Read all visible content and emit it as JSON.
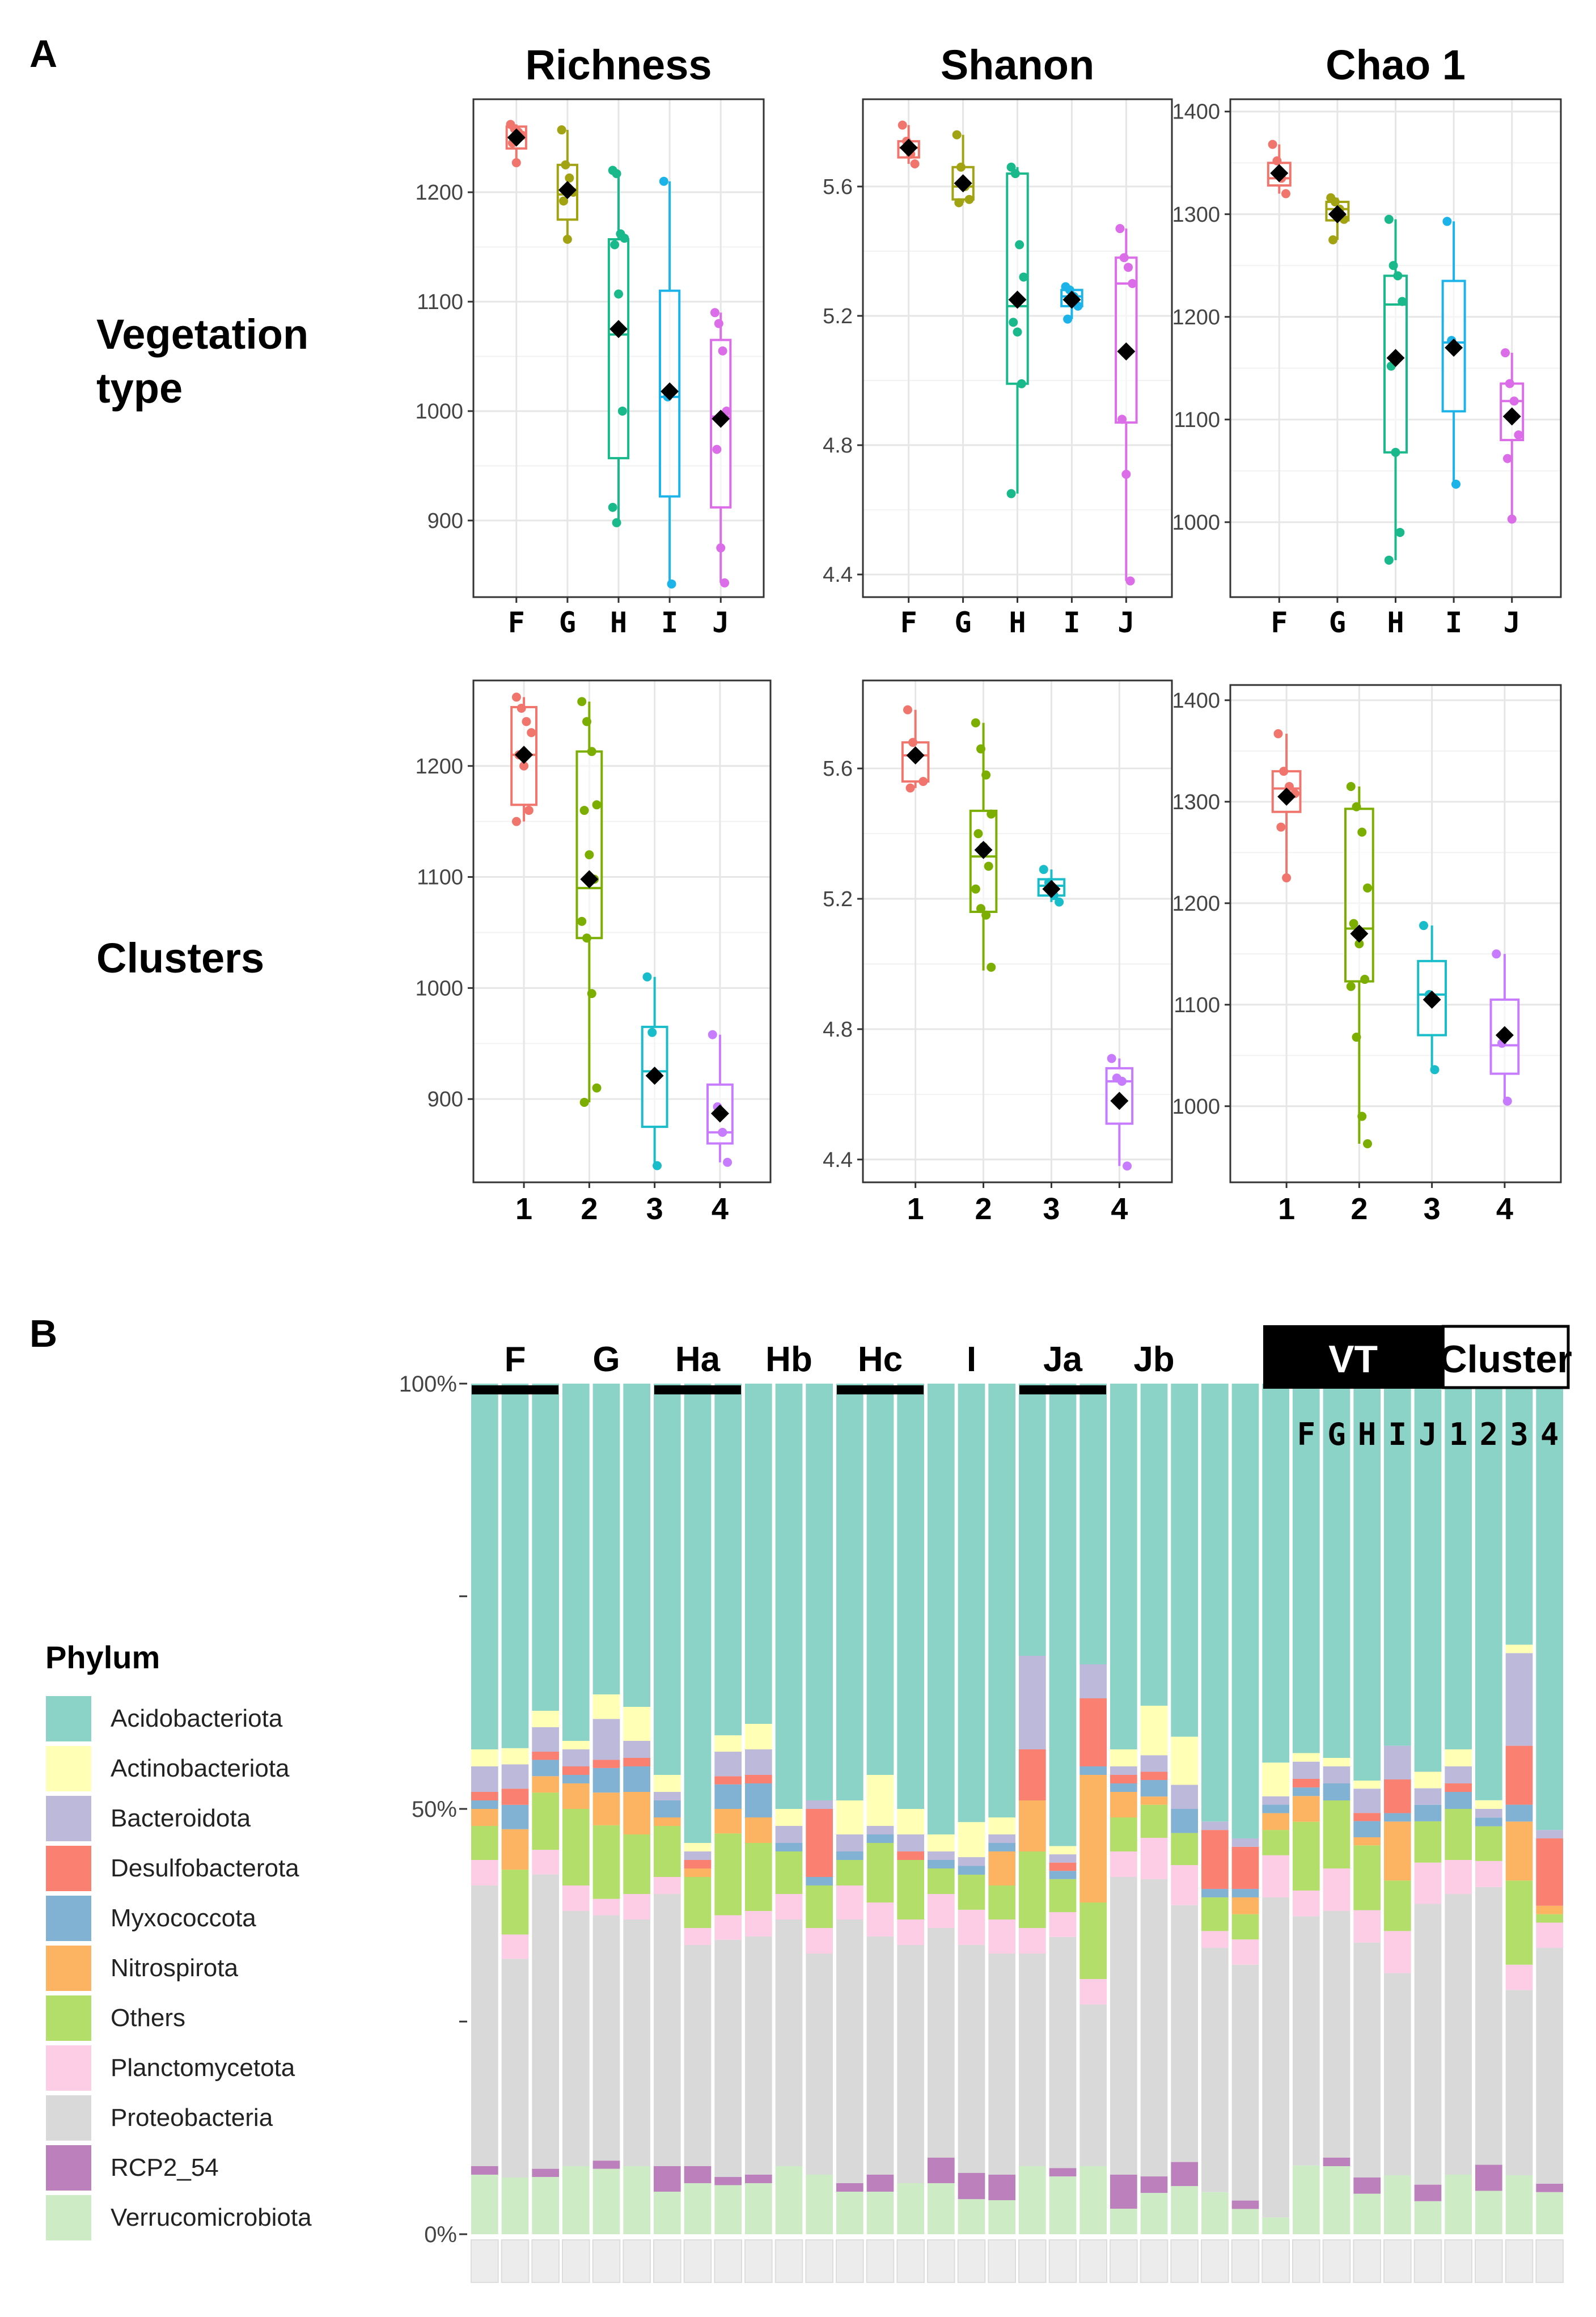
{
  "panel_labels": {
    "a": "A",
    "b": "B"
  },
  "row_labels": {
    "vegetation": [
      "Vegetation",
      "type"
    ],
    "clusters": "Clusters"
  },
  "colors": {
    "F": "#F0766D",
    "G": "#A2A312",
    "H": "#19B98B",
    "I": "#1CB3E8",
    "J": "#DB6DE8",
    "c1": "#F0766D",
    "c2": "#7CAE00",
    "c3": "#19BCC9",
    "c4": "#C77CFF"
  },
  "chart_data": [
    {
      "id": "richness_vt",
      "type": "boxplot",
      "title": "Richness",
      "categories": [
        "F",
        "G",
        "H",
        "I",
        "J"
      ],
      "ylim": [
        830,
        1285
      ],
      "yticks": [
        900,
        1000,
        1100,
        1200
      ],
      "series": [
        {
          "name": "F",
          "min": 1227,
          "q1": 1240,
          "median": 1250,
          "q3": 1260,
          "max": 1262,
          "mean": 1250,
          "points": [
            1262,
            1258,
            1255,
            1252,
            1245,
            1227
          ]
        },
        {
          "name": "G",
          "min": 1157,
          "q1": 1175,
          "median": 1198,
          "q3": 1225,
          "max": 1257,
          "mean": 1202,
          "points": [
            1257,
            1225,
            1213,
            1200,
            1192,
            1157
          ]
        },
        {
          "name": "H",
          "min": 898,
          "q1": 957,
          "median": 1070,
          "q3": 1157,
          "max": 1220,
          "mean": 1075,
          "points": [
            1220,
            1217,
            1162,
            1158,
            1152,
            1107,
            1000,
            912,
            898
          ]
        },
        {
          "name": "I",
          "min": 842,
          "q1": 922,
          "median": 1013,
          "q3": 1110,
          "max": 1210,
          "mean": 1018,
          "points": [
            1210,
            1013,
            842
          ]
        },
        {
          "name": "J",
          "min": 843,
          "q1": 912,
          "median": 995,
          "q3": 1065,
          "max": 1090,
          "mean": 993,
          "points": [
            1090,
            1080,
            1055,
            1000,
            965,
            875,
            843
          ]
        }
      ]
    },
    {
      "id": "shannon_vt",
      "type": "boxplot",
      "title": "Shanon",
      "categories": [
        "F",
        "G",
        "H",
        "I",
        "J"
      ],
      "ylim": [
        4.33,
        5.87
      ],
      "yticks": [
        4.4,
        4.8,
        5.2,
        5.6
      ],
      "series": [
        {
          "name": "F",
          "min": 5.67,
          "q1": 5.69,
          "median": 5.72,
          "q3": 5.74,
          "max": 5.79,
          "mean": 5.72,
          "points": [
            5.79,
            5.74,
            5.7,
            5.67
          ]
        },
        {
          "name": "G",
          "min": 5.55,
          "q1": 5.56,
          "median": 5.6,
          "q3": 5.66,
          "max": 5.76,
          "mean": 5.61,
          "points": [
            5.76,
            5.66,
            5.6,
            5.56,
            5.55
          ]
        },
        {
          "name": "H",
          "min": 4.65,
          "q1": 4.99,
          "median": 5.23,
          "q3": 5.64,
          "max": 5.66,
          "mean": 5.25,
          "points": [
            5.66,
            5.64,
            5.42,
            5.32,
            5.18,
            5.15,
            4.99,
            4.65
          ]
        },
        {
          "name": "I",
          "min": 5.19,
          "q1": 5.23,
          "median": 5.26,
          "q3": 5.28,
          "max": 5.29,
          "mean": 5.25,
          "points": [
            5.29,
            5.28,
            5.26,
            5.23,
            5.19
          ]
        },
        {
          "name": "J",
          "min": 4.38,
          "q1": 4.87,
          "median": 5.3,
          "q3": 5.38,
          "max": 5.47,
          "mean": 5.09,
          "points": [
            5.47,
            5.38,
            5.35,
            5.3,
            4.88,
            4.71,
            4.38
          ]
        }
      ]
    },
    {
      "id": "chao1_vt",
      "type": "boxplot",
      "title": "Chao 1",
      "categories": [
        "F",
        "G",
        "H",
        "I",
        "J"
      ],
      "ylim": [
        927,
        1412
      ],
      "yticks": [
        1000,
        1100,
        1200,
        1300,
        1400
      ],
      "series": [
        {
          "name": "F",
          "min": 1320,
          "q1": 1328,
          "median": 1335,
          "q3": 1350,
          "max": 1368,
          "mean": 1340,
          "points": [
            1368,
            1352,
            1335,
            1320
          ]
        },
        {
          "name": "G",
          "min": 1275,
          "q1": 1294,
          "median": 1305,
          "q3": 1312,
          "max": 1316,
          "mean": 1300,
          "points": [
            1316,
            1312,
            1305,
            1295,
            1275
          ]
        },
        {
          "name": "H",
          "min": 963,
          "q1": 1068,
          "median": 1212,
          "q3": 1240,
          "max": 1295,
          "mean": 1160,
          "points": [
            1295,
            1250,
            1240,
            1215,
            1152,
            1068,
            990,
            963
          ]
        },
        {
          "name": "I",
          "min": 1037,
          "q1": 1108,
          "median": 1175,
          "q3": 1235,
          "max": 1293,
          "mean": 1170,
          "points": [
            1293,
            1177,
            1037
          ]
        },
        {
          "name": "J",
          "min": 1003,
          "q1": 1080,
          "median": 1118,
          "q3": 1135,
          "max": 1165,
          "mean": 1103,
          "points": [
            1165,
            1135,
            1118,
            1085,
            1062,
            1003
          ]
        }
      ]
    },
    {
      "id": "richness_cl",
      "type": "boxplot",
      "title": "",
      "categories": [
        "1",
        "2",
        "3",
        "4"
      ],
      "ylim": [
        825,
        1277
      ],
      "yticks": [
        900,
        1000,
        1100,
        1200
      ],
      "series": [
        {
          "name": "1",
          "min": 1150,
          "q1": 1165,
          "median": 1210,
          "q3": 1253,
          "max": 1262,
          "mean": 1210,
          "points": [
            1262,
            1252,
            1240,
            1230,
            1210,
            1200,
            1160,
            1150
          ]
        },
        {
          "name": "2",
          "min": 897,
          "q1": 1045,
          "median": 1090,
          "q3": 1213,
          "max": 1258,
          "mean": 1098,
          "points": [
            1258,
            1240,
            1213,
            1165,
            1160,
            1120,
            1098,
            1060,
            1045,
            995,
            910,
            897
          ]
        },
        {
          "name": "3",
          "min": 840,
          "q1": 875,
          "median": 925,
          "q3": 965,
          "max": 1010,
          "mean": 921,
          "points": [
            1010,
            960,
            840
          ]
        },
        {
          "name": "4",
          "min": 843,
          "q1": 860,
          "median": 870,
          "q3": 913,
          "max": 958,
          "mean": 887,
          "points": [
            958,
            893,
            870,
            843
          ]
        }
      ]
    },
    {
      "id": "shannon_cl",
      "type": "boxplot",
      "title": "",
      "categories": [
        "1",
        "2",
        "3",
        "4"
      ],
      "ylim": [
        4.33,
        5.87
      ],
      "yticks": [
        4.4,
        4.8,
        5.2,
        5.6
      ],
      "series": [
        {
          "name": "1",
          "min": 5.54,
          "q1": 5.56,
          "median": 5.64,
          "q3": 5.68,
          "max": 5.78,
          "mean": 5.64,
          "points": [
            5.78,
            5.68,
            5.64,
            5.56,
            5.54
          ]
        },
        {
          "name": "2",
          "min": 4.98,
          "q1": 5.16,
          "median": 5.33,
          "q3": 5.47,
          "max": 5.74,
          "mean": 5.35,
          "points": [
            5.74,
            5.66,
            5.58,
            5.46,
            5.4,
            5.36,
            5.3,
            5.23,
            5.17,
            5.15,
            4.99
          ]
        },
        {
          "name": "3",
          "min": 5.19,
          "q1": 5.21,
          "median": 5.24,
          "q3": 5.26,
          "max": 5.29,
          "mean": 5.23,
          "points": [
            5.29,
            5.25,
            5.21,
            5.19
          ]
        },
        {
          "name": "4",
          "min": 4.38,
          "q1": 4.51,
          "median": 4.64,
          "q3": 4.68,
          "max": 4.71,
          "mean": 4.58,
          "points": [
            4.71,
            4.65,
            4.64,
            4.38
          ]
        }
      ]
    },
    {
      "id": "chao1_cl",
      "type": "boxplot",
      "title": "",
      "categories": [
        "1",
        "2",
        "3",
        "4"
      ],
      "ylim": [
        925,
        1415
      ],
      "yticks": [
        1000,
        1100,
        1200,
        1300,
        1400
      ],
      "series": [
        {
          "name": "1",
          "min": 1225,
          "q1": 1290,
          "median": 1313,
          "q3": 1330,
          "max": 1367,
          "mean": 1305,
          "points": [
            1367,
            1330,
            1315,
            1308,
            1275,
            1225
          ]
        },
        {
          "name": "2",
          "min": 963,
          "q1": 1123,
          "median": 1175,
          "q3": 1293,
          "max": 1315,
          "mean": 1170,
          "points": [
            1315,
            1295,
            1270,
            1215,
            1180,
            1160,
            1125,
            1118,
            1068,
            990,
            963
          ]
        },
        {
          "name": "3",
          "min": 1036,
          "q1": 1070,
          "median": 1110,
          "q3": 1143,
          "max": 1178,
          "mean": 1105,
          "points": [
            1178,
            1110,
            1036
          ]
        },
        {
          "name": "4",
          "min": 1005,
          "q1": 1032,
          "median": 1060,
          "q3": 1105,
          "max": 1150,
          "mean": 1070,
          "points": [
            1150,
            1062,
            1005
          ]
        }
      ]
    },
    {
      "id": "phylum_bar",
      "type": "stacked_bar",
      "legend_title": "Phylum",
      "y_axis_labels": [
        "100%",
        "50%",
        "0%"
      ],
      "group_labels": [
        "F",
        "G",
        "Ha",
        "Hb",
        "Hc",
        "I",
        "Ja",
        "Jb"
      ],
      "header_labels": {
        "vt": "VT",
        "cluster": "Cluster"
      },
      "summary_labels": [
        "F",
        "G",
        "H",
        "I",
        "J",
        "1",
        "2",
        "3",
        "4"
      ],
      "phyla": [
        "Acidobacteriota",
        "Actinobacteriota",
        "Bacteroidota",
        "Desulfobacterota",
        "Myxococcota",
        "Nitrospirota",
        "Others",
        "Planctomycetota",
        "Proteobacteria",
        "RCP2_54",
        "Verrucomicrobiota"
      ],
      "phylum_colors": [
        "#8CD3C7",
        "#FFFFB5",
        "#BCB9DA",
        "#FA8072",
        "#81B1D3",
        "#FDB462",
        "#B3DE69",
        "#FCCDE5",
        "#D9D9D9",
        "#BC80BD",
        "#CDEBC5"
      ],
      "stack_order": [
        "Verrucomicrobiota",
        "RCP2_54",
        "Proteobacteria",
        "Planctomycetota",
        "Others",
        "Nitrospirota",
        "Myxococcota",
        "Desulfobacterota",
        "Bacteroidota",
        "Actinobacteriota",
        "Acidobacteriota"
      ],
      "bars": [
        [
          7,
          1,
          33,
          3,
          4,
          2,
          1,
          1,
          3,
          2,
          43
        ],
        [
          7,
          0,
          27,
          3,
          8,
          5,
          3,
          2,
          3,
          2,
          45
        ],
        [
          7,
          1,
          36,
          3,
          7,
          2,
          2,
          1,
          3,
          2,
          40
        ],
        [
          8,
          0,
          30,
          3,
          9,
          3,
          1,
          1,
          2,
          1,
          42
        ],
        [
          8,
          1,
          30,
          2,
          9,
          4,
          3,
          1,
          5,
          3,
          38
        ],
        [
          8,
          0,
          29,
          3,
          7,
          5,
          3,
          1,
          2,
          4,
          38
        ],
        [
          5,
          3,
          32,
          2,
          6,
          1,
          2,
          0,
          1,
          2,
          46
        ],
        [
          6,
          2,
          26,
          2,
          6,
          1,
          0,
          1,
          1,
          1,
          54
        ],
        [
          6,
          1,
          29,
          3,
          10,
          3,
          3,
          1,
          3,
          2,
          43
        ],
        [
          6,
          1,
          28,
          3,
          8,
          3,
          4,
          1,
          3,
          3,
          40
        ],
        [
          8,
          0,
          29,
          3,
          5,
          0,
          1,
          0,
          2,
          2,
          50
        ],
        [
          7,
          0,
          26,
          3,
          5,
          0,
          1,
          8,
          1,
          0,
          49
        ],
        [
          5,
          1,
          31,
          4,
          3,
          0,
          1,
          0,
          2,
          4,
          49
        ],
        [
          5,
          2,
          28,
          4,
          7,
          0,
          1,
          0,
          1,
          6,
          46
        ],
        [
          6,
          0,
          28,
          3,
          7,
          0,
          0,
          1,
          2,
          3,
          50
        ],
        [
          6,
          3,
          27,
          4,
          3,
          0,
          1,
          0,
          1,
          2,
          53
        ],
        [
          4,
          3,
          26,
          4,
          4,
          0,
          1,
          0,
          1,
          4,
          50
        ],
        [
          4,
          3,
          26,
          4,
          4,
          4,
          1,
          0,
          1,
          2,
          51
        ],
        [
          8,
          0,
          25,
          3,
          9,
          6,
          0,
          6,
          11,
          0,
          32
        ],
        [
          7,
          1,
          28,
          3,
          4,
          0,
          1,
          1,
          1,
          1,
          56
        ],
        [
          8,
          0,
          19,
          3,
          9,
          15,
          1,
          8,
          4,
          0,
          33
        ],
        [
          3,
          4,
          35,
          3,
          4,
          3,
          1,
          1,
          1,
          2,
          43
        ],
        [
          5,
          2,
          36,
          5,
          4,
          1,
          2,
          1,
          2,
          6,
          39
        ],
        [
          6,
          3,
          32,
          5,
          4,
          0,
          3,
          0,
          3,
          6,
          44
        ],
        [
          5,
          0,
          29,
          2,
          4,
          0,
          1,
          7,
          1,
          0,
          52
        ],
        [
          3,
          1,
          28,
          3,
          3,
          2,
          1,
          5,
          1,
          0,
          54
        ],
        [
          2,
          0,
          38,
          5,
          3,
          2,
          1,
          0,
          1,
          4,
          45
        ],
        [
          8,
          0,
          29,
          3,
          8,
          3,
          1,
          1,
          2,
          1,
          43
        ],
        [
          8,
          1,
          29,
          5,
          8,
          0,
          2,
          0,
          2,
          1,
          44
        ],
        [
          5,
          2,
          29,
          4,
          8,
          1,
          2,
          1,
          3,
          1,
          49
        ],
        [
          7,
          0,
          24,
          5,
          6,
          7,
          1,
          4,
          4,
          0,
          43
        ],
        [
          4,
          2,
          34,
          5,
          5,
          0,
          2,
          0,
          2,
          2,
          47
        ],
        [
          7,
          0,
          33,
          4,
          6,
          0,
          2,
          1,
          2,
          2,
          43
        ],
        [
          5,
          3,
          32,
          3,
          4,
          0,
          1,
          0,
          1,
          1,
          48
        ],
        [
          7,
          0,
          22,
          3,
          10,
          7,
          2,
          7,
          11,
          1,
          31
        ],
        [
          5,
          1,
          28,
          3,
          1,
          1,
          0,
          8,
          1,
          0,
          53
        ]
      ]
    }
  ]
}
